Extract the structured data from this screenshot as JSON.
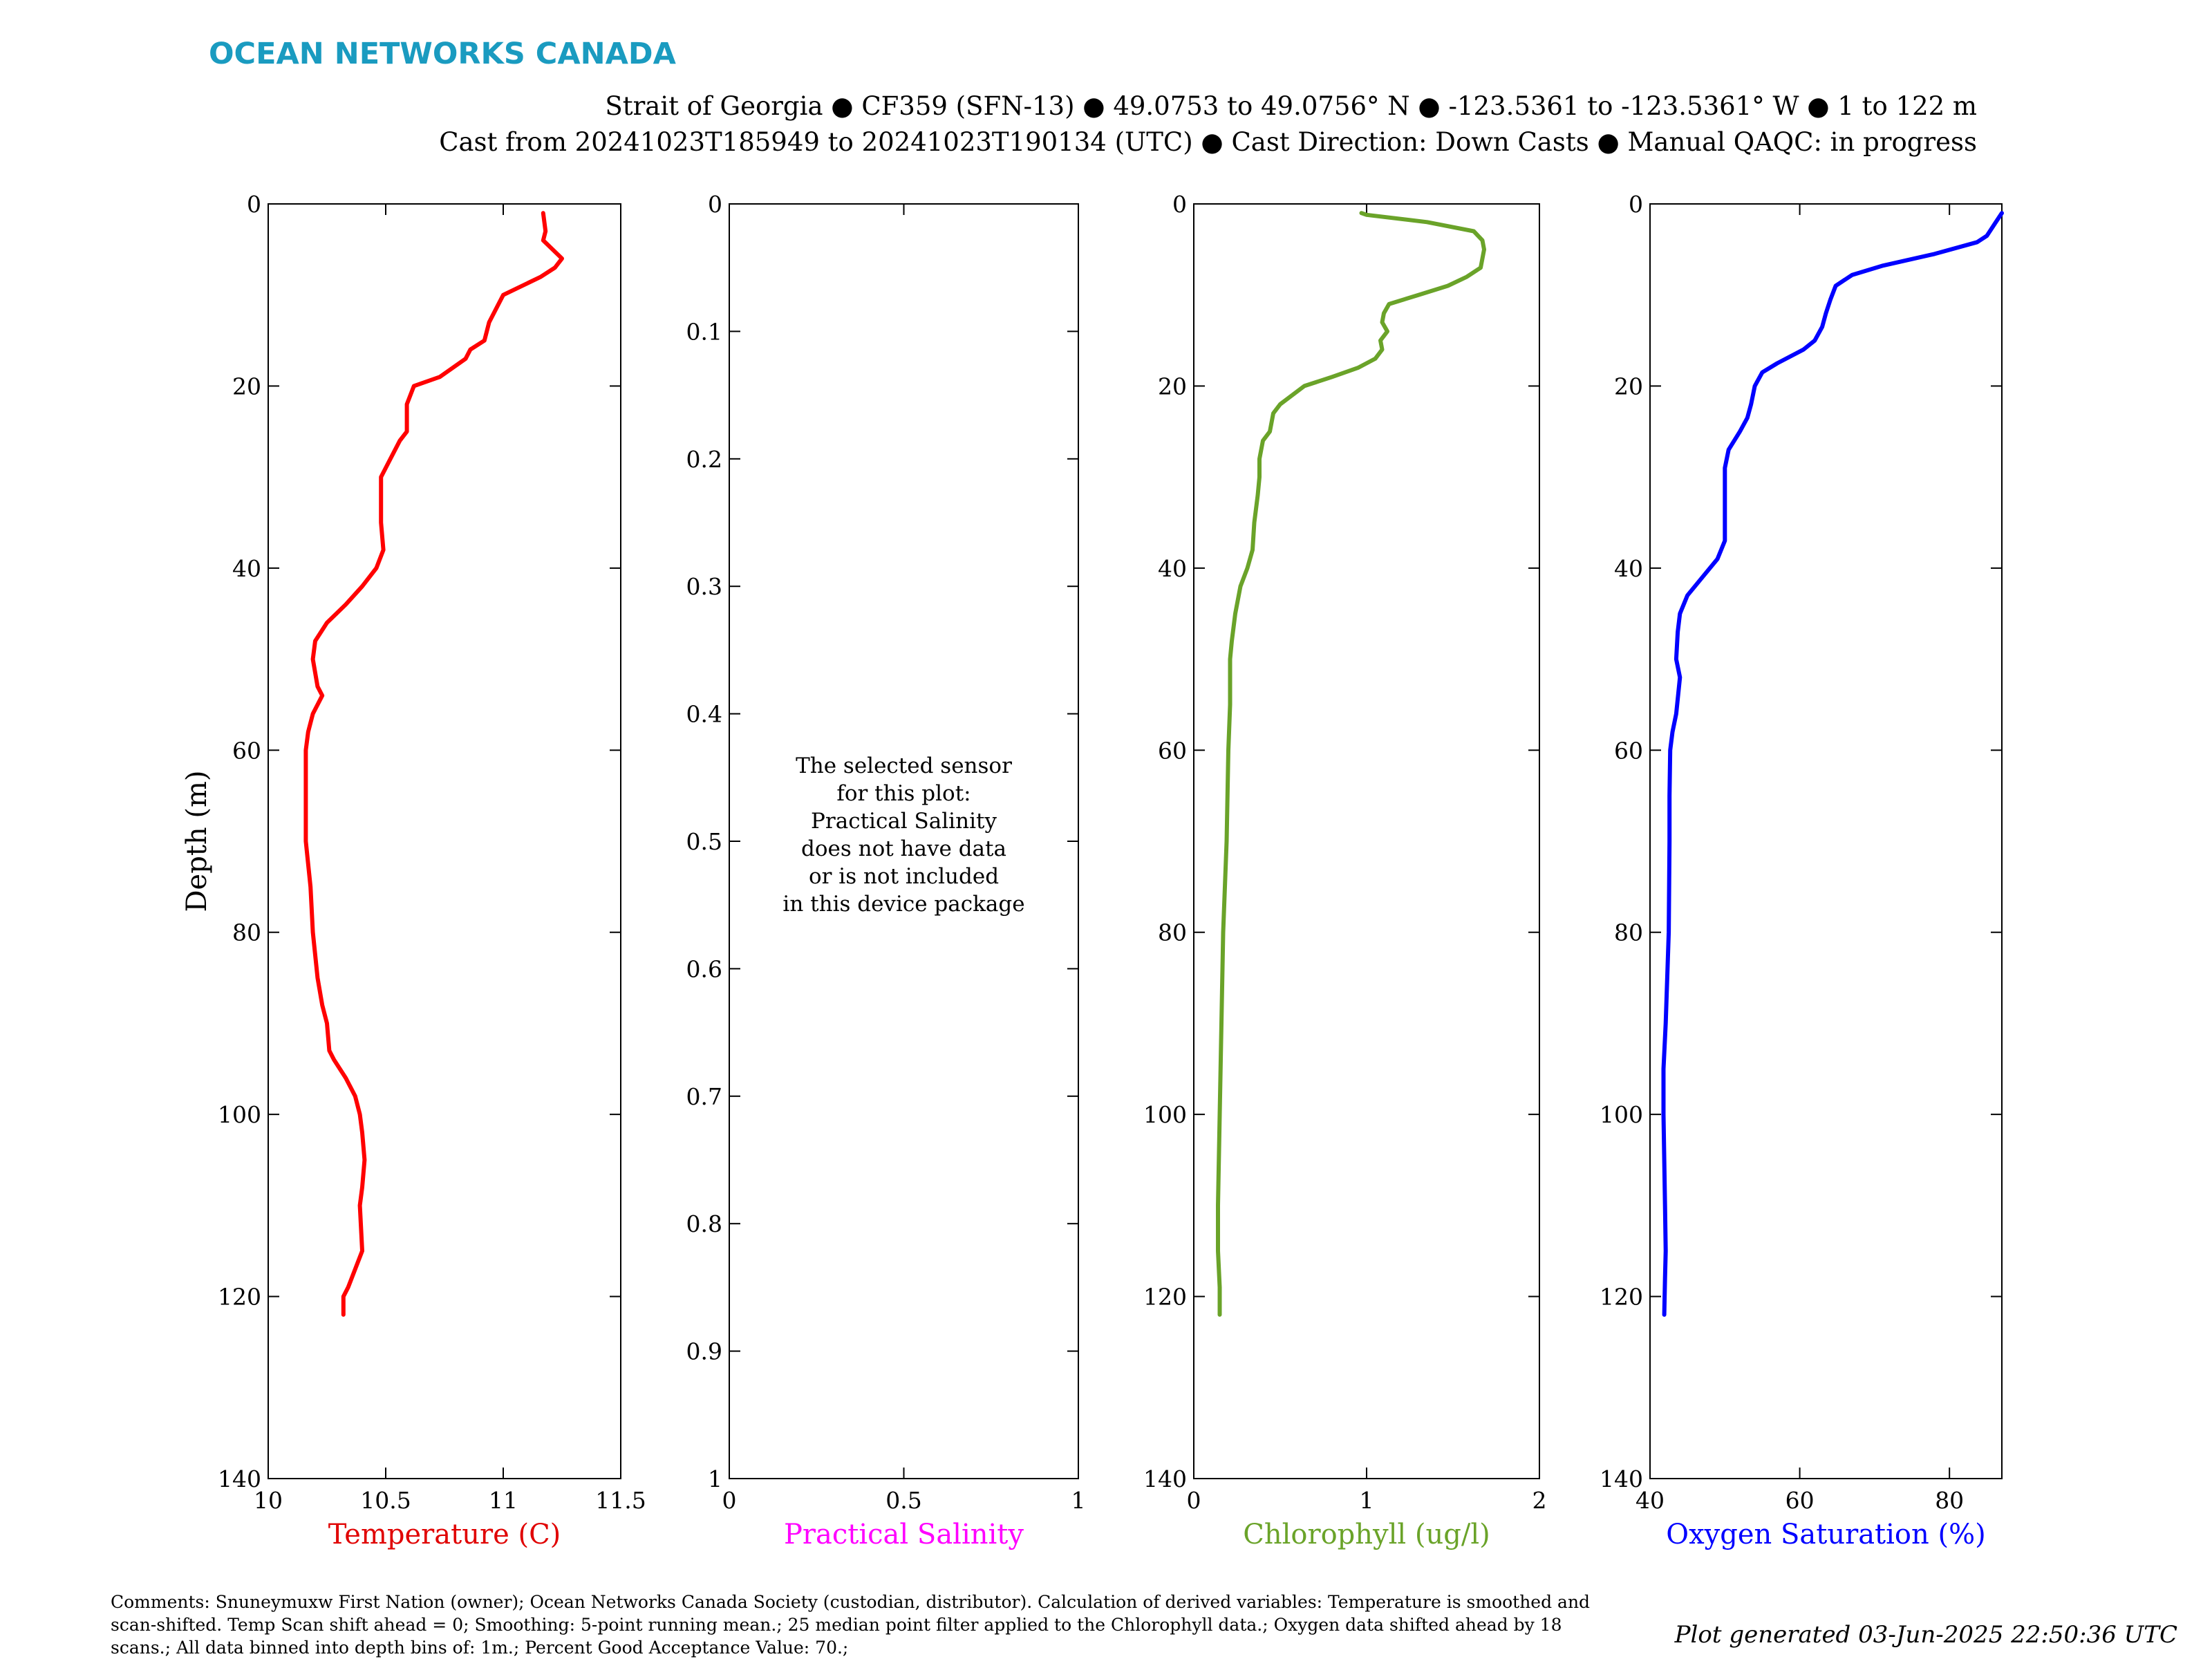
{
  "header": {
    "brand": "OCEAN NETWORKS CANADA",
    "brand_color": "#1a9bc0",
    "title_line1": "Strait of Georgia ● CF359 (SFN-13) ● 49.0753 to 49.0756° N ● -123.5361 to -123.5361° W ● 1 to 122 m",
    "title_line2": "Cast from 20241023T185949 to 20241023T190134 (UTC) ● Cast Direction: Down Casts ● Manual QAQC: in progress"
  },
  "footer": {
    "comments_line1": "Comments: Snuneymuxw First Nation (owner); Ocean Networks Canada Society (custodian, distributor). Calculation of derived variables: Temperature is smoothed and",
    "comments_line2": "scan-shifted. Temp Scan shift ahead = 0; Smoothing: 5-point running mean.; 25 median point filter applied to the Chlorophyll data.; Oxygen data shifted ahead by 18",
    "comments_line3": "scans.; All data binned into depth bins of: 1m.; Percent Good Acceptance Value: 70.;",
    "generated": "Plot generated 03-Jun-2025 22:50:36 UTC"
  },
  "chart_data": [
    {
      "type": "line",
      "ylabel": "Depth (m)",
      "xlabel": "Temperature (C)",
      "xlabel_color": "#e00000",
      "ylim": [
        0,
        140
      ],
      "y_reversed": true,
      "xlim": [
        10,
        11.5
      ],
      "yticks": [
        0,
        20,
        40,
        60,
        80,
        100,
        120,
        140
      ],
      "ytick_labels": [
        "0",
        "20",
        "40",
        "60",
        "80",
        "100",
        "120",
        "140"
      ],
      "xticks": [
        10,
        10.5,
        11,
        11.5
      ],
      "xtick_labels": [
        "10",
        "10.5",
        "11",
        "11.5"
      ],
      "series": [
        {
          "color": "#ff0000",
          "points": [
            [
              11.17,
              1
            ],
            [
              11.18,
              3
            ],
            [
              11.17,
              4
            ],
            [
              11.25,
              6
            ],
            [
              11.22,
              7
            ],
            [
              11.16,
              8
            ],
            [
              11.0,
              10
            ],
            [
              10.98,
              11
            ],
            [
              10.94,
              13
            ],
            [
              10.92,
              15
            ],
            [
              10.86,
              16
            ],
            [
              10.84,
              17
            ],
            [
              10.73,
              19
            ],
            [
              10.62,
              20
            ],
            [
              10.59,
              22
            ],
            [
              10.59,
              25
            ],
            [
              10.56,
              26
            ],
            [
              10.52,
              28
            ],
            [
              10.48,
              30
            ],
            [
              10.48,
              35
            ],
            [
              10.49,
              38
            ],
            [
              10.46,
              40
            ],
            [
              10.4,
              42
            ],
            [
              10.33,
              44
            ],
            [
              10.25,
              46
            ],
            [
              10.2,
              48
            ],
            [
              10.19,
              50
            ],
            [
              10.21,
              53
            ],
            [
              10.23,
              54
            ],
            [
              10.19,
              56
            ],
            [
              10.17,
              58
            ],
            [
              10.16,
              60
            ],
            [
              10.16,
              65
            ],
            [
              10.16,
              70
            ],
            [
              10.18,
              75
            ],
            [
              10.19,
              80
            ],
            [
              10.21,
              85
            ],
            [
              10.23,
              88
            ],
            [
              10.25,
              90
            ],
            [
              10.26,
              93
            ],
            [
              10.28,
              94
            ],
            [
              10.33,
              96
            ],
            [
              10.37,
              98
            ],
            [
              10.39,
              100
            ],
            [
              10.4,
              102
            ],
            [
              10.41,
              105
            ],
            [
              10.4,
              108
            ],
            [
              10.39,
              110
            ],
            [
              10.4,
              115
            ],
            [
              10.37,
              117
            ],
            [
              10.34,
              119
            ],
            [
              10.32,
              120
            ],
            [
              10.32,
              122
            ]
          ]
        }
      ]
    },
    {
      "type": "line",
      "xlabel": "Practical Salinity",
      "xlabel_color": "#ff00ff",
      "ylim": [
        0,
        1
      ],
      "y_reversed": true,
      "xlim": [
        0,
        1
      ],
      "yticks": [
        0,
        0.1,
        0.2,
        0.3,
        0.4,
        0.5,
        0.6,
        0.7,
        0.8,
        0.9,
        1
      ],
      "ytick_labels": [
        "0",
        "0.1",
        "0.2",
        "0.3",
        "0.4",
        "0.5",
        "0.6",
        "0.7",
        "0.8",
        "0.9",
        "1"
      ],
      "xticks": [
        0,
        0.5,
        1
      ],
      "xtick_labels": [
        "0",
        "0.5",
        "1"
      ],
      "series": [],
      "annotation": [
        "The selected sensor",
        "for this plot:",
        "Practical Salinity",
        "does not have data",
        "or is not included",
        "in this device package"
      ]
    },
    {
      "type": "line",
      "xlabel": "Chlorophyll (ug/l)",
      "xlabel_color": "#6aa329",
      "ylim": [
        0,
        140
      ],
      "y_reversed": true,
      "xlim": [
        0,
        2
      ],
      "yticks": [
        0,
        20,
        40,
        60,
        80,
        100,
        120,
        140
      ],
      "ytick_labels": [
        "0",
        "20",
        "40",
        "60",
        "80",
        "100",
        "120",
        "140"
      ],
      "xticks": [
        0,
        1,
        2
      ],
      "xtick_labels": [
        "0",
        "1",
        "2"
      ],
      "series": [
        {
          "color": "#6aa329",
          "points": [
            [
              0.97,
              1
            ],
            [
              1.0,
              1.2
            ],
            [
              1.35,
              2
            ],
            [
              1.62,
              3
            ],
            [
              1.67,
              4
            ],
            [
              1.68,
              5
            ],
            [
              1.66,
              7
            ],
            [
              1.58,
              8
            ],
            [
              1.47,
              9
            ],
            [
              1.3,
              10
            ],
            [
              1.13,
              11
            ],
            [
              1.1,
              12
            ],
            [
              1.09,
              13
            ],
            [
              1.12,
              14
            ],
            [
              1.08,
              15
            ],
            [
              1.09,
              16
            ],
            [
              1.05,
              17
            ],
            [
              0.95,
              18
            ],
            [
              0.8,
              19
            ],
            [
              0.64,
              20
            ],
            [
              0.5,
              22
            ],
            [
              0.46,
              23
            ],
            [
              0.44,
              25
            ],
            [
              0.4,
              26
            ],
            [
              0.38,
              28
            ],
            [
              0.38,
              30
            ],
            [
              0.37,
              32
            ],
            [
              0.35,
              35
            ],
            [
              0.34,
              38
            ],
            [
              0.31,
              40
            ],
            [
              0.27,
              42
            ],
            [
              0.24,
              45
            ],
            [
              0.22,
              48
            ],
            [
              0.21,
              50
            ],
            [
              0.21,
              55
            ],
            [
              0.2,
              60
            ],
            [
              0.19,
              70
            ],
            [
              0.17,
              80
            ],
            [
              0.16,
              90
            ],
            [
              0.15,
              100
            ],
            [
              0.14,
              110
            ],
            [
              0.14,
              115
            ],
            [
              0.15,
              119
            ],
            [
              0.15,
              122
            ]
          ]
        }
      ]
    },
    {
      "type": "line",
      "xlabel": "Oxygen Saturation (%)",
      "xlabel_color": "#0000ff",
      "ylim": [
        0,
        140
      ],
      "y_reversed": true,
      "xlim": [
        40,
        87
      ],
      "yticks": [
        0,
        20,
        40,
        60,
        80,
        100,
        120,
        140
      ],
      "ytick_labels": [
        "0",
        "20",
        "40",
        "60",
        "80",
        "100",
        "120",
        "140"
      ],
      "xticks": [
        40,
        60,
        80
      ],
      "xtick_labels": [
        "40",
        "60",
        "80"
      ],
      "series": [
        {
          "color": "#0000ff",
          "points": [
            [
              87,
              1
            ],
            [
              86.2,
              2
            ],
            [
              85,
              3.5
            ],
            [
              83.7,
              4.2
            ],
            [
              78,
              5.5
            ],
            [
              71,
              6.8
            ],
            [
              67,
              7.8
            ],
            [
              64.8,
              9
            ],
            [
              64.1,
              10.5
            ],
            [
              63.5,
              12
            ],
            [
              63,
              13.5
            ],
            [
              62,
              15
            ],
            [
              60.5,
              16
            ],
            [
              57,
              17.5
            ],
            [
              55,
              18.5
            ],
            [
              54,
              20
            ],
            [
              53.5,
              22
            ],
            [
              53,
              23.5
            ],
            [
              52,
              25
            ],
            [
              50.5,
              27
            ],
            [
              50,
              29
            ],
            [
              50,
              33
            ],
            [
              50,
              37
            ],
            [
              49,
              39
            ],
            [
              47,
              41
            ],
            [
              45,
              43
            ],
            [
              44,
              45
            ],
            [
              43.7,
              47
            ],
            [
              43.5,
              50
            ],
            [
              44,
              52
            ],
            [
              43.5,
              56
            ],
            [
              43,
              58
            ],
            [
              42.7,
              60
            ],
            [
              42.6,
              65
            ],
            [
              42.6,
              70
            ],
            [
              42.5,
              80
            ],
            [
              42.3,
              85
            ],
            [
              42.1,
              90
            ],
            [
              41.8,
              95
            ],
            [
              41.8,
              100
            ],
            [
              42,
              110
            ],
            [
              42.1,
              115
            ],
            [
              42,
              118
            ],
            [
              41.9,
              122
            ]
          ]
        }
      ]
    }
  ]
}
